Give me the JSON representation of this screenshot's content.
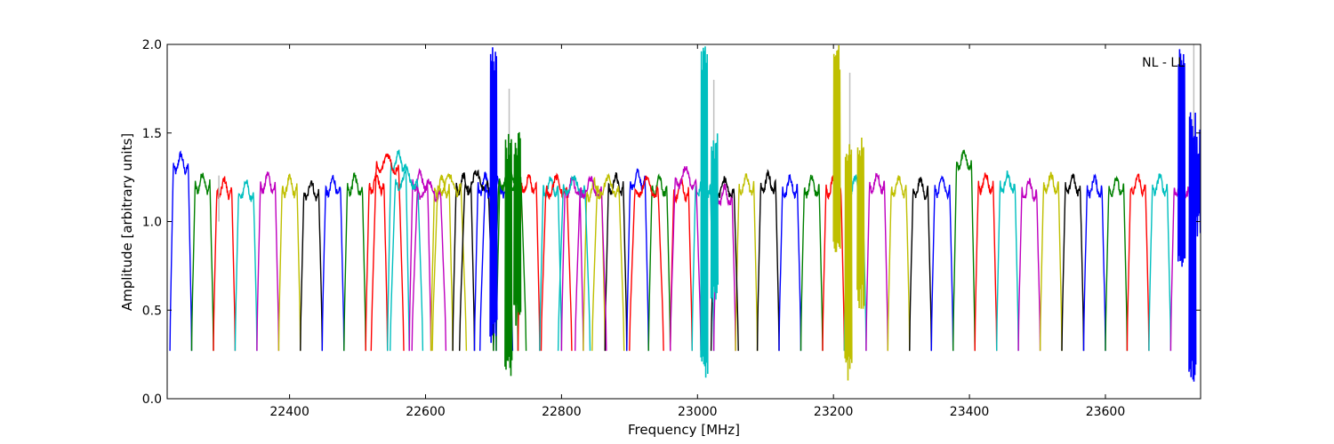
{
  "chart_data": {
    "type": "line",
    "title": "",
    "annotation": "NL - LL",
    "xlabel": "Frequency [MHz]",
    "ylabel": "Amplitude [arbitrary units]",
    "xlim": [
      22220,
      23740
    ],
    "ylim": [
      0.0,
      2.0
    ],
    "x_ticks": [
      22400,
      22600,
      22800,
      23000,
      23200,
      23400,
      23600
    ],
    "x_tick_labels": [
      "22400",
      "22600",
      "22800",
      "23000",
      "23200",
      "23400",
      "23600"
    ],
    "y_ticks": [
      0.0,
      0.5,
      1.0,
      1.5,
      2.0
    ],
    "y_tick_labels": [
      "0.0",
      "0.5",
      "1.0",
      "1.5",
      "2.0"
    ],
    "grid": false,
    "series_colors": [
      "#0000ff",
      "#008000",
      "#ff0000",
      "#00bfbf",
      "#bf00bf",
      "#bfbf00",
      "#000000"
    ],
    "color_cycle_order": [
      "blue",
      "green",
      "red",
      "cyan",
      "magenta",
      "olive",
      "black"
    ],
    "band_width_mhz": 32,
    "band_start_mhz": 22228,
    "notch_depth": 0.27,
    "band_plateau_levels": [
      1.33,
      1.22,
      1.19,
      1.18,
      1.22,
      1.2,
      1.18,
      1.2,
      1.21,
      1.22,
      1.34,
      1.23,
      1.2,
      1.21,
      1.21,
      1.22,
      1.21,
      1.2,
      1.2,
      1.18,
      1.21,
      1.24,
      1.2,
      1.18,
      1.2,
      1.15,
      1.21,
      1.22,
      1.2,
      1.2,
      1.2,
      1.2,
      1.22,
      1.2,
      1.19,
      1.2,
      1.35,
      1.22,
      1.22,
      1.18,
      1.22,
      1.21,
      1.2,
      1.2,
      1.21,
      1.21,
      1.2,
      1.2
    ],
    "overlap_bands": [
      {
        "color": "#ff0000",
        "start": 22520,
        "end": 22568,
        "level": 1.33
      },
      {
        "color": "#00bfbf",
        "start": 22548,
        "end": 22596,
        "level": 1.24
      },
      {
        "color": "#bf00bf",
        "start": 22580,
        "end": 22630,
        "level": 1.18
      },
      {
        "color": "#bfbf00",
        "start": 22610,
        "end": 22660,
        "level": 1.21
      },
      {
        "color": "#000000",
        "start": 22650,
        "end": 22700,
        "level": 1.23
      },
      {
        "color": "#0000ff",
        "start": 22680,
        "end": 22728,
        "level": 1.2
      },
      {
        "color": "#008000",
        "start": 22700,
        "end": 22748,
        "level": 1.24
      },
      {
        "color": "#ff0000",
        "start": 22770,
        "end": 22815,
        "level": 1.2
      },
      {
        "color": "#00bfbf",
        "start": 22795,
        "end": 22842,
        "level": 1.2
      },
      {
        "color": "#bf00bf",
        "start": 22820,
        "end": 22866,
        "level": 1.19
      },
      {
        "color": "#bfbf00",
        "start": 22845,
        "end": 22892,
        "level": 1.2
      },
      {
        "color": "#ff0000",
        "start": 22900,
        "end": 22950,
        "level": 1.19
      },
      {
        "color": "#bf00bf",
        "start": 22960,
        "end": 23005,
        "level": 1.25
      },
      {
        "color": "#000000",
        "start": 23020,
        "end": 23060,
        "level": 1.19
      }
    ],
    "spikes": [
      {
        "color": "#0000ff",
        "x": 22700,
        "ymin": 0.3,
        "ymax": 2.0
      },
      {
        "color": "#008000",
        "x": 22722,
        "ymin": 0.1,
        "ymax": 1.5
      },
      {
        "color": "#008000",
        "x": 22735,
        "ymin": 0.4,
        "ymax": 1.52
      },
      {
        "color": "#00bfbf",
        "x": 23010,
        "ymin": 0.1,
        "ymax": 2.0
      },
      {
        "color": "#00bfbf",
        "x": 23025,
        "ymin": 0.5,
        "ymax": 1.5
      },
      {
        "color": "#bfbf00",
        "x": 23205,
        "ymin": 0.75,
        "ymax": 2.0
      },
      {
        "color": "#bfbf00",
        "x": 23222,
        "ymin": 0.1,
        "ymax": 1.45
      },
      {
        "color": "#bfbf00",
        "x": 23240,
        "ymin": 0.5,
        "ymax": 1.52
      },
      {
        "color": "#0000ff",
        "x": 23712,
        "ymin": 0.72,
        "ymax": 2.0
      },
      {
        "color": "#0000ff",
        "x": 23728,
        "ymin": 0.08,
        "ymax": 1.62
      },
      {
        "color": "#0000ff",
        "x": 23736,
        "ymin": 0.9,
        "ymax": 1.52
      }
    ],
    "gray_markers": [
      {
        "x": 22296,
        "y": 1.26
      },
      {
        "x": 22723,
        "y": 1.75
      },
      {
        "x": 23024,
        "y": 1.8
      },
      {
        "x": 23224,
        "y": 1.84
      },
      {
        "x": 23730,
        "y": 2.0
      }
    ]
  }
}
